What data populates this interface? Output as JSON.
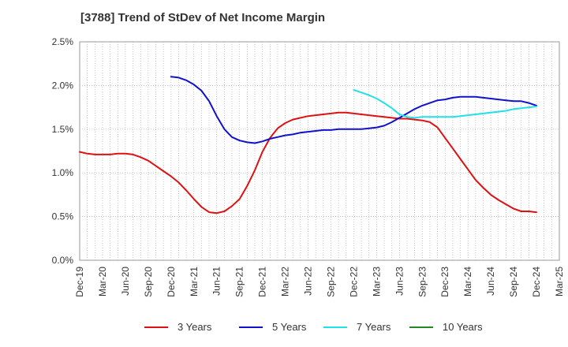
{
  "chart_data": {
    "type": "line",
    "title": "[3788]  Trend of StDev of Net Income Margin",
    "xlabel": "",
    "ylabel": "",
    "ylim": [
      0,
      2.5
    ],
    "y_ticks": [
      "0.0%",
      "0.5%",
      "1.0%",
      "1.5%",
      "2.0%",
      "2.5%"
    ],
    "y_tick_values": [
      0,
      0.5,
      1.0,
      1.5,
      2.0,
      2.5
    ],
    "x_ticks": [
      "Dec-19",
      "Mar-20",
      "Jun-20",
      "Sep-20",
      "Dec-20",
      "Mar-21",
      "Jun-21",
      "Sep-21",
      "Dec-21",
      "Mar-22",
      "Jun-22",
      "Sep-22",
      "Dec-22",
      "Mar-23",
      "Jun-23",
      "Sep-23",
      "Dec-23",
      "Mar-24",
      "Jun-24",
      "Sep-24",
      "Dec-24",
      "Mar-25"
    ],
    "grid": true,
    "legend_position": "bottom",
    "series": [
      {
        "name": "3 Years",
        "color": "#dd1111",
        "x": [
          "Dec-19",
          "Jan-20",
          "Feb-20",
          "Mar-20",
          "Apr-20",
          "May-20",
          "Jun-20",
          "Jul-20",
          "Aug-20",
          "Sep-20",
          "Oct-20",
          "Nov-20",
          "Dec-20",
          "Jan-21",
          "Feb-21",
          "Mar-21",
          "Apr-21",
          "May-21",
          "Jun-21",
          "Jul-21",
          "Aug-21",
          "Sep-21",
          "Oct-21",
          "Nov-21",
          "Dec-21",
          "Jan-22",
          "Feb-22",
          "Mar-22",
          "Apr-22",
          "May-22",
          "Jun-22",
          "Jul-22",
          "Aug-22",
          "Sep-22",
          "Oct-22",
          "Nov-22",
          "Dec-22",
          "Jan-23",
          "Feb-23",
          "Mar-23",
          "Apr-23",
          "May-23",
          "Jun-23",
          "Jul-23",
          "Aug-23",
          "Sep-23",
          "Oct-23",
          "Nov-23",
          "Dec-23",
          "Jan-24",
          "Feb-24",
          "Mar-24",
          "Apr-24",
          "May-24",
          "Jun-24",
          "Jul-24",
          "Aug-24",
          "Sep-24",
          "Oct-24",
          "Nov-24",
          "Dec-24"
        ],
        "values": [
          1.24,
          1.22,
          1.21,
          1.21,
          1.21,
          1.22,
          1.22,
          1.21,
          1.18,
          1.14,
          1.08,
          1.02,
          0.96,
          0.89,
          0.8,
          0.7,
          0.61,
          0.55,
          0.54,
          0.56,
          0.62,
          0.7,
          0.85,
          1.03,
          1.24,
          1.4,
          1.51,
          1.57,
          1.61,
          1.63,
          1.65,
          1.66,
          1.67,
          1.68,
          1.69,
          1.69,
          1.68,
          1.67,
          1.66,
          1.65,
          1.64,
          1.63,
          1.62,
          1.62,
          1.61,
          1.6,
          1.58,
          1.52,
          1.4,
          1.28,
          1.16,
          1.04,
          0.92,
          0.83,
          0.75,
          0.69,
          0.64,
          0.59,
          0.56,
          0.56,
          0.55
        ]
      },
      {
        "name": "5 Years",
        "color": "#1111cc",
        "x": [
          "Dec-20",
          "Jan-21",
          "Feb-21",
          "Mar-21",
          "Apr-21",
          "May-21",
          "Jun-21",
          "Jul-21",
          "Aug-21",
          "Sep-21",
          "Oct-21",
          "Nov-21",
          "Dec-21",
          "Jan-22",
          "Feb-22",
          "Mar-22",
          "Apr-22",
          "May-22",
          "Jun-22",
          "Jul-22",
          "Aug-22",
          "Sep-22",
          "Oct-22",
          "Nov-22",
          "Dec-22",
          "Jan-23",
          "Feb-23",
          "Mar-23",
          "Apr-23",
          "May-23",
          "Jun-23",
          "Jul-23",
          "Aug-23",
          "Sep-23",
          "Oct-23",
          "Nov-23",
          "Dec-23",
          "Jan-24",
          "Feb-24",
          "Mar-24",
          "Apr-24",
          "May-24",
          "Jun-24",
          "Jul-24",
          "Aug-24",
          "Sep-24",
          "Oct-24",
          "Nov-24",
          "Dec-24"
        ],
        "values": [
          2.1,
          2.09,
          2.06,
          2.01,
          1.94,
          1.82,
          1.65,
          1.5,
          1.41,
          1.37,
          1.35,
          1.34,
          1.36,
          1.39,
          1.41,
          1.43,
          1.44,
          1.46,
          1.47,
          1.48,
          1.49,
          1.49,
          1.5,
          1.5,
          1.5,
          1.5,
          1.51,
          1.52,
          1.54,
          1.58,
          1.63,
          1.68,
          1.73,
          1.77,
          1.8,
          1.83,
          1.84,
          1.86,
          1.87,
          1.87,
          1.87,
          1.86,
          1.85,
          1.84,
          1.83,
          1.82,
          1.82,
          1.8,
          1.77
        ]
      },
      {
        "name": "7 Years",
        "color": "#22e0e8",
        "x": [
          "Dec-22",
          "Jan-23",
          "Feb-23",
          "Mar-23",
          "Apr-23",
          "May-23",
          "Jun-23",
          "Jul-23",
          "Aug-23",
          "Sep-23",
          "Oct-23",
          "Nov-23",
          "Dec-23",
          "Jan-24",
          "Feb-24",
          "Mar-24",
          "Apr-24",
          "May-24",
          "Jun-24",
          "Jul-24",
          "Aug-24",
          "Sep-24",
          "Oct-24",
          "Nov-24",
          "Dec-24"
        ],
        "values": [
          1.95,
          1.92,
          1.89,
          1.85,
          1.8,
          1.74,
          1.67,
          1.64,
          1.63,
          1.64,
          1.64,
          1.64,
          1.64,
          1.64,
          1.65,
          1.66,
          1.67,
          1.68,
          1.69,
          1.7,
          1.71,
          1.73,
          1.74,
          1.75,
          1.76
        ]
      },
      {
        "name": "10 Years",
        "color": "#228822",
        "x": [],
        "values": []
      }
    ]
  }
}
